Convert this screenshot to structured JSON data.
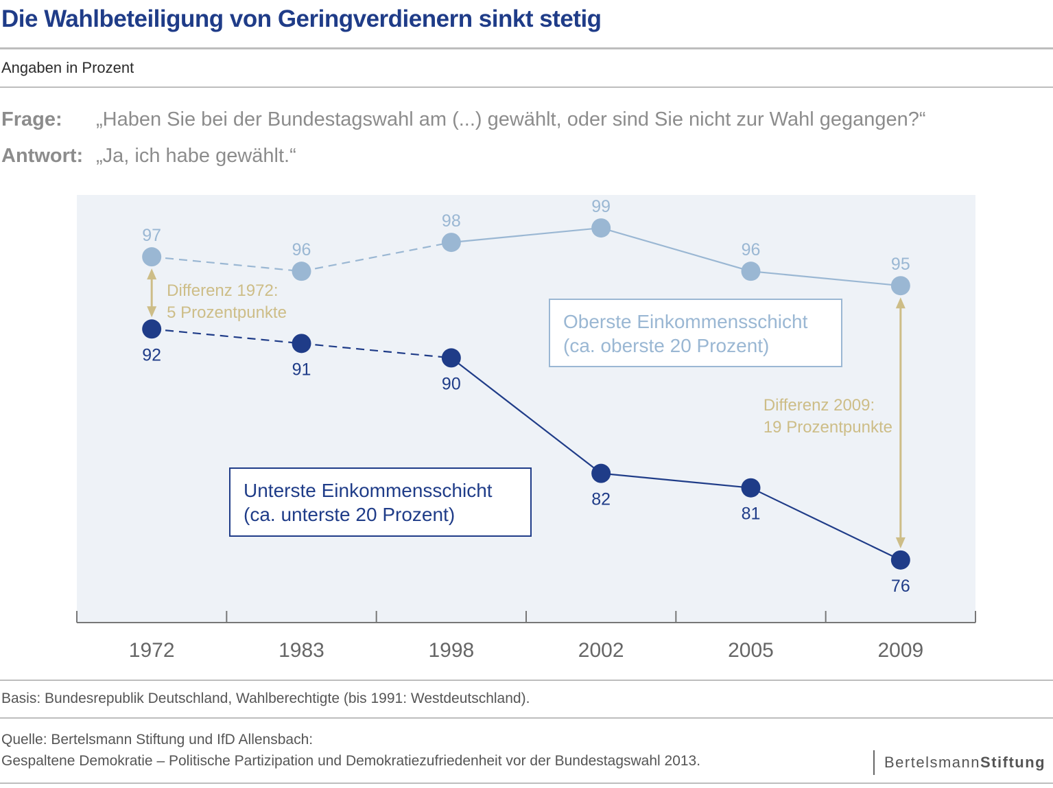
{
  "header": {
    "title": "Die Wahlbeteiligung von Geringverdienern sinkt stetig",
    "subtitle": "Angaben in Prozent",
    "question_label": "Frage:",
    "question_text": "„Haben Sie bei der Bundestagswahl am (...) gewählt, oder sind Sie nicht zur Wahl gegangen?“",
    "answer_label": "Antwort:",
    "answer_text": "„Ja, ich habe gewählt.“"
  },
  "chart_data": {
    "type": "line",
    "categories": [
      "1972",
      "1983",
      "1998",
      "2002",
      "2005",
      "2009"
    ],
    "series": [
      {
        "name": "Oberste Einkommensschicht (ca. oberste 20 Prozent)",
        "legend_lines": [
          "Oberste Einkommensschicht",
          "(ca. oberste 20 Prozent)"
        ],
        "values": [
          97,
          96,
          98,
          99,
          96,
          95
        ],
        "color": "#9ab7d3",
        "dashed_until_index": 2
      },
      {
        "name": "Unterste Einkommensschicht (ca. unterste 20 Prozent)",
        "legend_lines": [
          "Unterste Einkommensschicht",
          "(ca. unterste 20 Prozent)"
        ],
        "values": [
          92,
          91,
          90,
          82,
          81,
          76
        ],
        "color": "#1f3c88",
        "dashed_until_index": 2
      }
    ],
    "annotations": [
      {
        "category": "1972",
        "lines": [
          "Differenz 1972:",
          "5 Prozentpunkte"
        ]
      },
      {
        "category": "2009",
        "lines": [
          "Differenz 2009:",
          "19 Prozentpunkte"
        ]
      }
    ],
    "ylim": [
      72,
      101
    ],
    "grid": false,
    "colors": {
      "background": "#eef2f7",
      "annotation": "#cdbd87",
      "axis": "#777777",
      "tick_label": "#666666"
    }
  },
  "footer": {
    "basis": "Basis: Bundesrepublik Deutschland, Wahlberechtigte (bis 1991:  Westdeutschland).",
    "source_line1": "Quelle: Bertelsmann Stiftung und IfD Allensbach:",
    "source_line2": "Gespaltene Demokratie – Politische Partizipation und Demokratiezufriedenheit vor der Bundestagswahl 2013.",
    "brand_light": "Bertelsmann",
    "brand_bold": "Stiftung"
  }
}
